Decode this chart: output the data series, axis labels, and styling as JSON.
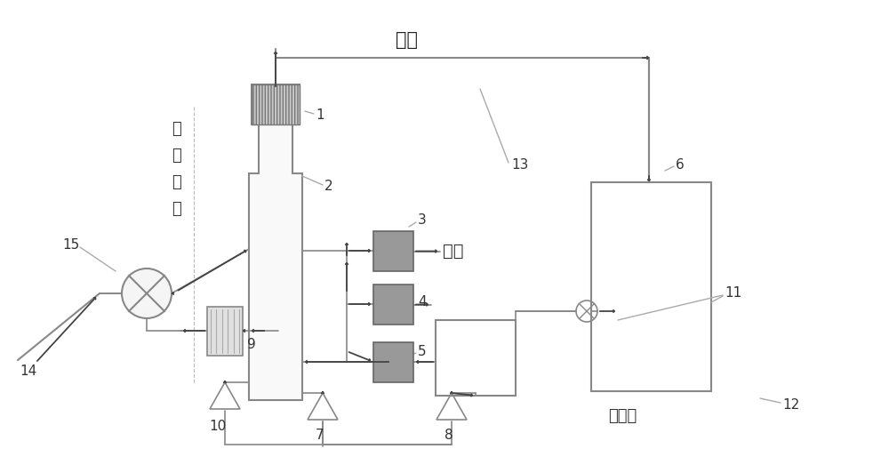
{
  "bg_color": "#ffffff",
  "lc": "#aaaaaa",
  "lc_dark": "#888888",
  "ac": "#444444",
  "bf": "#999999",
  "title_ammonia": "氨汽",
  "text_shenghua": "生化",
  "text_xunhuan_1": "循",
  "text_xunhuan_2": "环",
  "text_xunhuan_3": "氨",
  "text_xunhuan_4": "水",
  "text_tuoliu": "脱硛液",
  "labels": [
    "1",
    "2",
    "3",
    "4",
    "5",
    "6",
    "7",
    "8",
    "9",
    "10",
    "11",
    "12",
    "13",
    "14",
    "15"
  ]
}
